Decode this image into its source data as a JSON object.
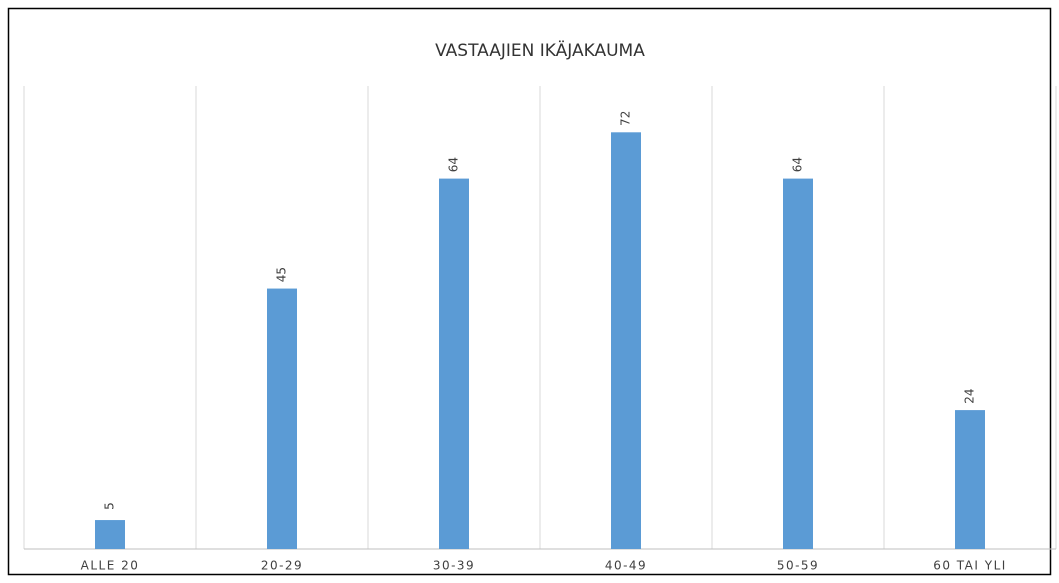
{
  "chart_data": {
    "type": "bar",
    "title": "VASTAAJIEN IKÄJAKAUMA",
    "categories": [
      "ALLE 20",
      "20-29",
      "30-39",
      "40-49",
      "50-59",
      "60 TAI YLI"
    ],
    "values": [
      5,
      45,
      64,
      72,
      64,
      24
    ],
    "color": "#5b9bd5",
    "ylim": [
      0,
      80
    ],
    "grid": true
  }
}
